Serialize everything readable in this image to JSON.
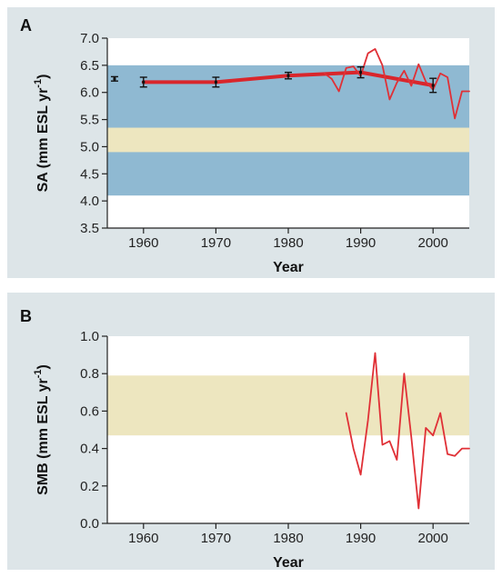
{
  "chart_data": [
    {
      "panel": "A",
      "type": "line",
      "xlabel": "Year",
      "ylabel_main": "SA (mm ESL yr",
      "ylabel_sup": "-1",
      "ylabel_tail": ")",
      "xlim": [
        1955,
        2005
      ],
      "ylim": [
        3.5,
        7.0
      ],
      "xticks": [
        1960,
        1970,
        1980,
        1990,
        2000
      ],
      "yticks": [
        "3.5",
        "4.0",
        "4.5",
        "5.0",
        "5.5",
        "6.0",
        "6.5",
        "7.0"
      ],
      "bands": [
        {
          "y0": 4.1,
          "y1": 6.5,
          "color": "#8fb9d2"
        },
        {
          "y0": 4.9,
          "y1": 5.35,
          "color": "#ede6bf"
        }
      ],
      "points_with_error": [
        {
          "x": 1956,
          "y": 6.25,
          "err": 0.04
        },
        {
          "x": 1960,
          "y": 6.19,
          "err": 0.09
        },
        {
          "x": 1970,
          "y": 6.19,
          "err": 0.09
        },
        {
          "x": 1980,
          "y": 6.31,
          "err": 0.06
        },
        {
          "x": 1990,
          "y": 6.37,
          "err": 0.1
        },
        {
          "x": 2000,
          "y": 6.13,
          "err": 0.13
        }
      ],
      "series": [
        {
          "kind": "thick",
          "color": "#d9262c",
          "x": [
            1960,
            1970,
            1980,
            1990,
            2000
          ],
          "y": [
            6.19,
            6.19,
            6.31,
            6.37,
            6.13
          ]
        },
        {
          "kind": "thin",
          "color": "#e03036",
          "x": [
            1985,
            1986,
            1987,
            1988,
            1989,
            1990,
            1991,
            1992,
            1993,
            1994,
            1995,
            1996,
            1997,
            1998,
            1999,
            2000,
            2001,
            2002,
            2003,
            2004,
            2005
          ],
          "y": [
            6.35,
            6.25,
            6.02,
            6.45,
            6.48,
            6.3,
            6.72,
            6.8,
            6.5,
            5.87,
            6.18,
            6.4,
            6.12,
            6.52,
            6.2,
            6.05,
            6.35,
            6.28,
            5.52,
            6.02,
            6.02
          ]
        }
      ]
    },
    {
      "panel": "B",
      "type": "line",
      "xlabel": "Year",
      "ylabel_main": "SMB (mm ESL yr",
      "ylabel_sup": "-1",
      "ylabel_tail": ")",
      "xlim": [
        1955,
        2005
      ],
      "ylim": [
        0.0,
        1.0
      ],
      "xticks": [
        1960,
        1970,
        1980,
        1990,
        2000
      ],
      "yticks": [
        "0.0",
        "0.2",
        "0.4",
        "0.6",
        "0.8",
        "1.0"
      ],
      "bands": [
        {
          "y0": 0.47,
          "y1": 0.79,
          "color": "#ede6bf"
        }
      ],
      "series": [
        {
          "kind": "thin",
          "color": "#e03036",
          "x": [
            1988,
            1989,
            1990,
            1991,
            1992,
            1993,
            1994,
            1995,
            1996,
            1997,
            1998,
            1999,
            2000,
            2001,
            2002,
            2003,
            2004,
            2005
          ],
          "y": [
            0.59,
            0.4,
            0.26,
            0.55,
            0.91,
            0.42,
            0.44,
            0.34,
            0.8,
            0.46,
            0.08,
            0.51,
            0.47,
            0.59,
            0.37,
            0.36,
            0.4,
            0.4
          ]
        }
      ]
    }
  ]
}
